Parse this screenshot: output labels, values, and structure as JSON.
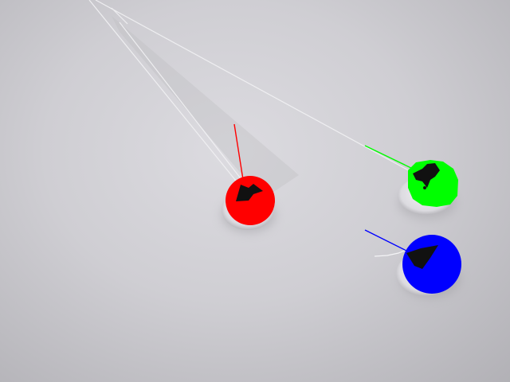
{
  "scene": {
    "background_color": "#d2d1d6",
    "objects": [
      {
        "name": "red-marker",
        "color": "#ff0000",
        "line_color": "#ff0000"
      },
      {
        "name": "green-marker",
        "color": "#00ff00",
        "line_color": "#00ff00"
      },
      {
        "name": "blue-marker",
        "color": "#0000ff",
        "line_color": "#0000ff"
      }
    ]
  }
}
